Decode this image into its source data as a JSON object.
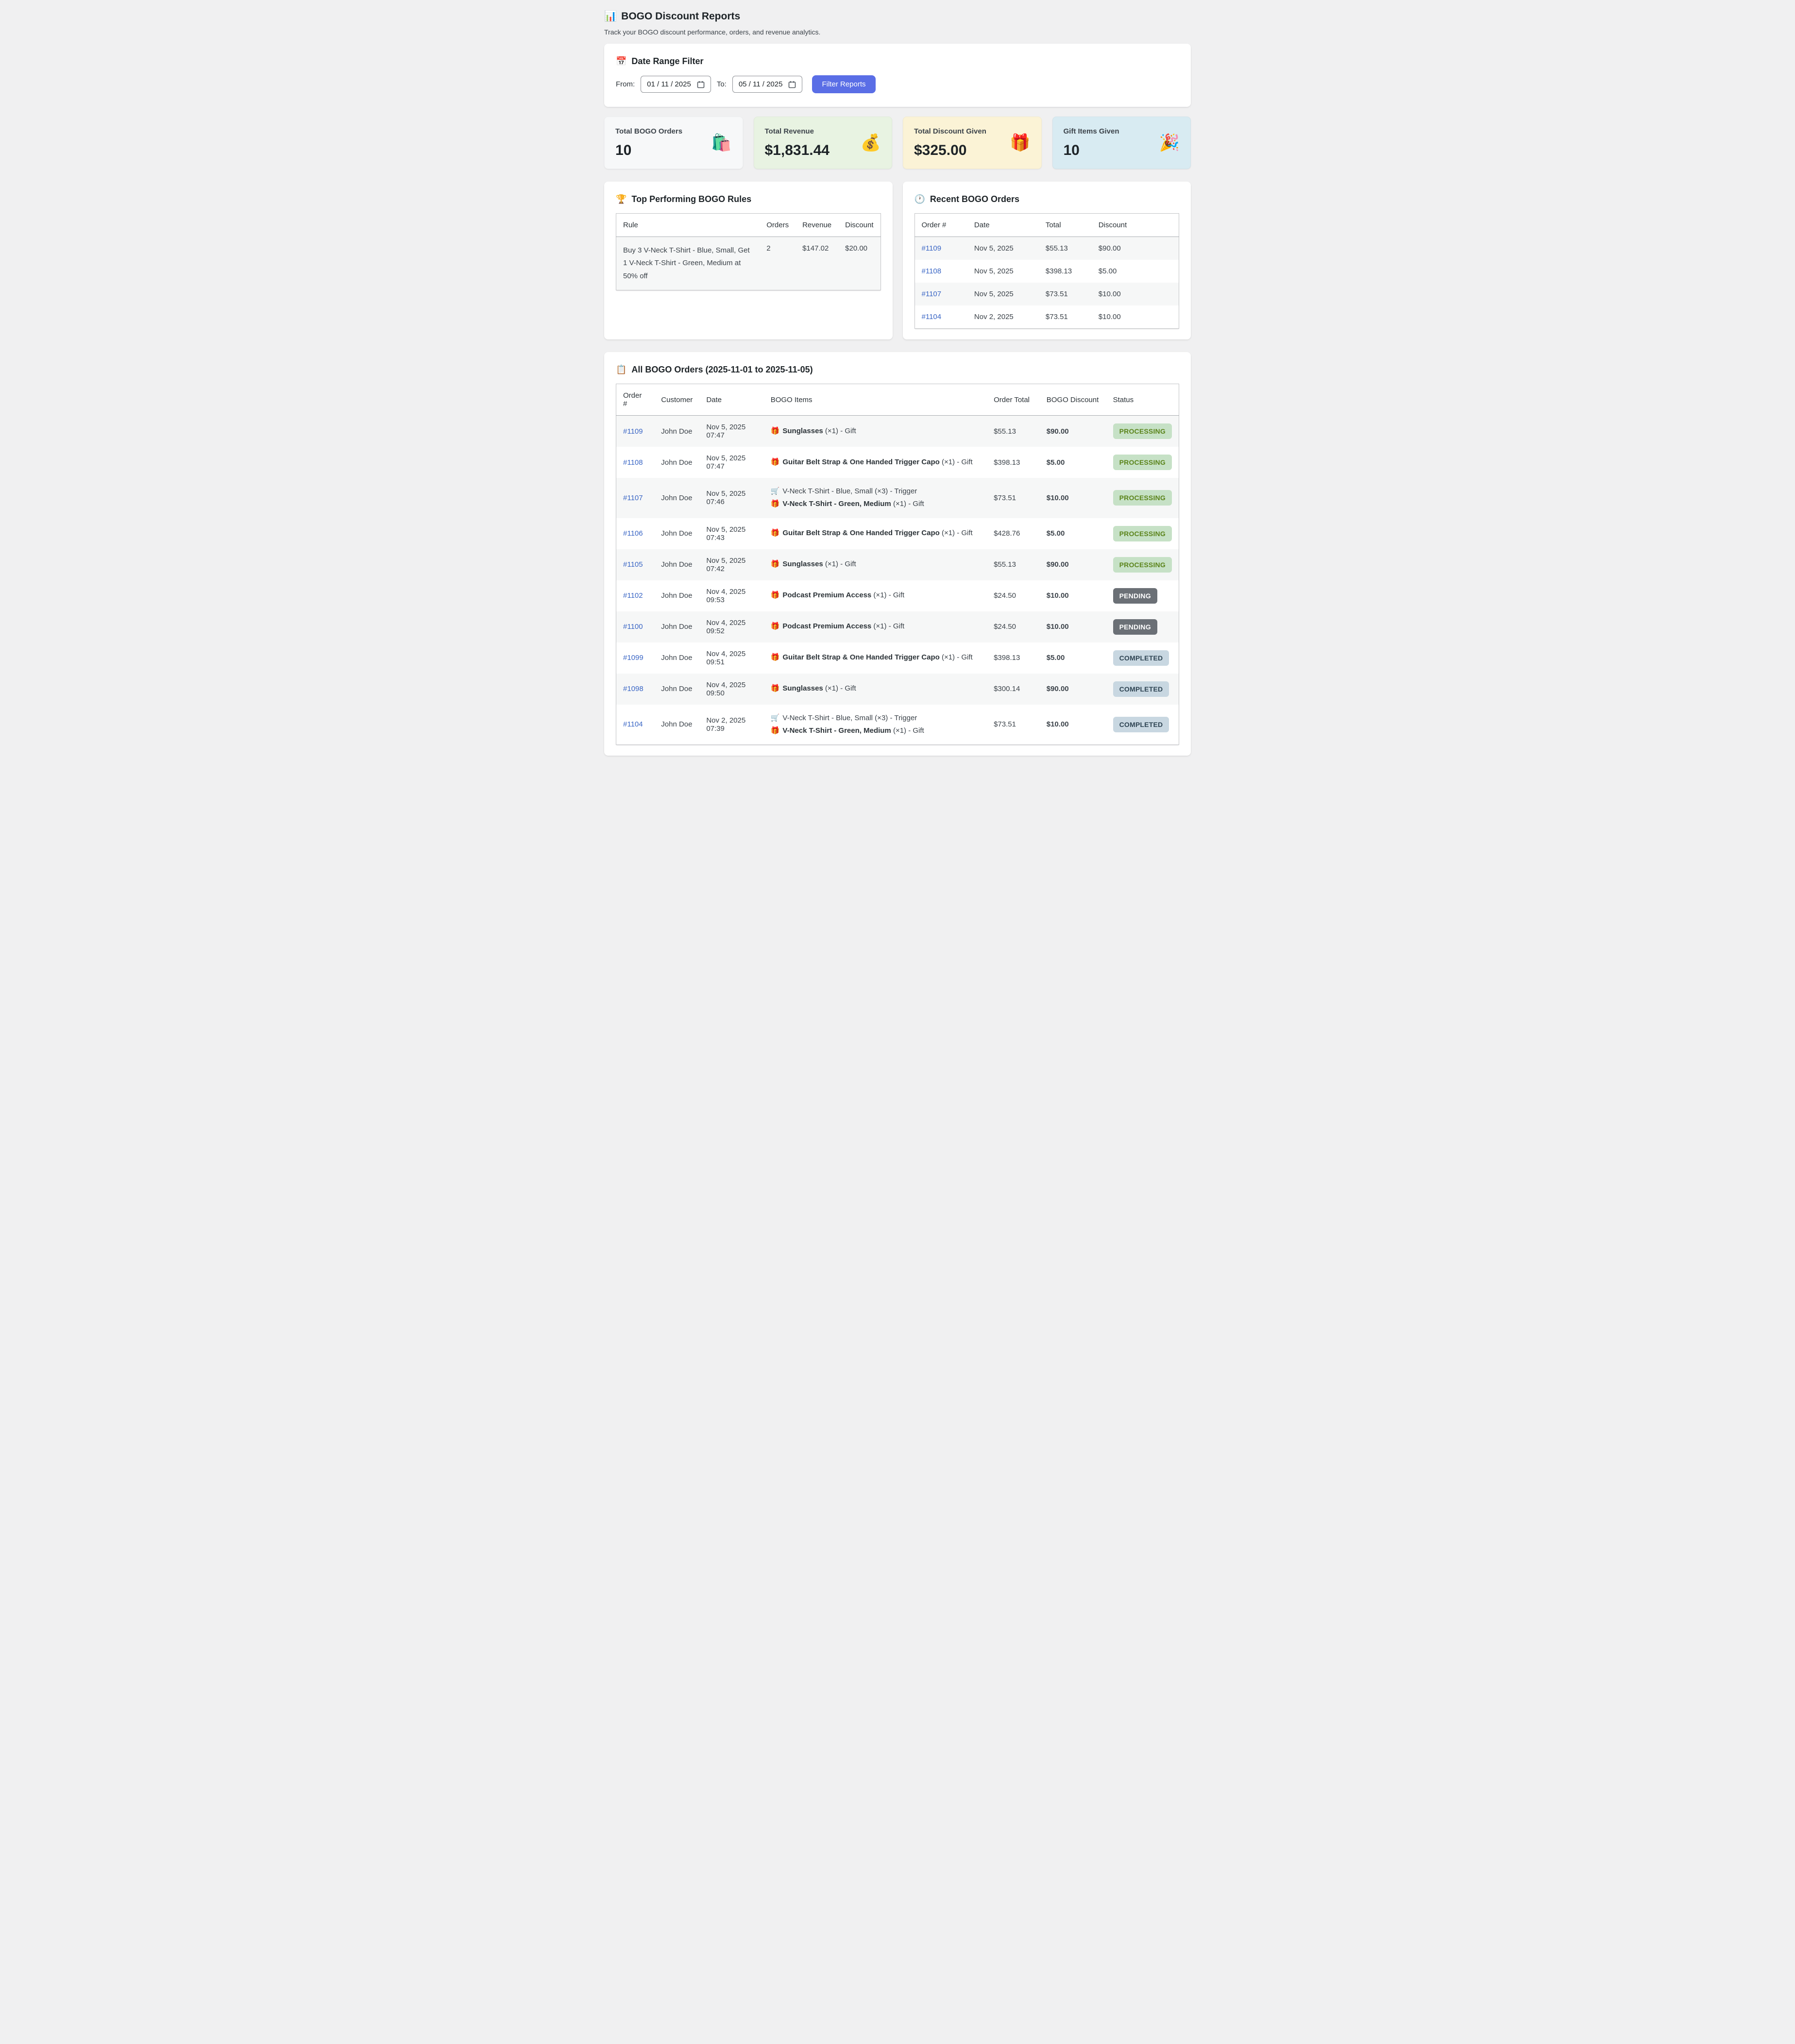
{
  "page": {
    "title_icon": "📊",
    "title": "BOGO Discount Reports",
    "subtitle": "Track your BOGO discount performance, orders, and revenue analytics."
  },
  "filter": {
    "icon": "📅",
    "heading": "Date Range Filter",
    "from_label": "From:",
    "from_value": "01 / 11 / 2025",
    "to_label": "To:",
    "to_value": "05 / 11 / 2025",
    "button_label": "Filter Reports",
    "button_color": "#5a6ee6"
  },
  "stats": [
    {
      "label": "Total BOGO Orders",
      "value": "10",
      "icon": "🛍️",
      "icon_name": "shopping-bags-icon",
      "bg": "#f7f8f9"
    },
    {
      "label": "Total Revenue",
      "value": "$1,831.44",
      "icon": "💰",
      "icon_name": "money-bag-icon",
      "bg": "#e8f3e2"
    },
    {
      "label": "Total Discount Given",
      "value": "$325.00",
      "icon": "🎁",
      "icon_name": "gift-icon",
      "bg": "#fbf3d6"
    },
    {
      "label": "Gift Items Given",
      "value": "10",
      "icon": "🎉",
      "icon_name": "party-popper-icon",
      "bg": "#d8ebf2"
    }
  ],
  "top_rules": {
    "icon": "🏆",
    "heading": "Top Performing BOGO Rules",
    "columns": [
      "Rule",
      "Orders",
      "Revenue",
      "Discount"
    ],
    "rows": [
      {
        "rule": "Buy 3 V-Neck T-Shirt - Blue, Small, Get 1 V-Neck T-Shirt - Green, Medium at 50% off",
        "orders": "2",
        "revenue": "$147.02",
        "discount": "$20.00"
      }
    ]
  },
  "recent_orders": {
    "icon": "🕐",
    "heading": "Recent BOGO Orders",
    "columns": [
      "Order #",
      "Date",
      "Total",
      "Discount"
    ],
    "rows": [
      {
        "order": "#1109",
        "date": "Nov 5, 2025",
        "total": "$55.13",
        "discount": "$90.00"
      },
      {
        "order": "#1108",
        "date": "Nov 5, 2025",
        "total": "$398.13",
        "discount": "$5.00"
      },
      {
        "order": "#1107",
        "date": "Nov 5, 2025",
        "total": "$73.51",
        "discount": "$10.00"
      },
      {
        "order": "#1104",
        "date": "Nov 2, 2025",
        "total": "$73.51",
        "discount": "$10.00"
      }
    ]
  },
  "all_orders": {
    "icon": "📋",
    "heading": "All BOGO Orders (2025-11-01 to 2025-11-05)",
    "columns": [
      "Order #",
      "Customer",
      "Date",
      "BOGO Items",
      "Order Total",
      "BOGO Discount",
      "Status"
    ],
    "rows": [
      {
        "order": "#1109",
        "customer": "John Doe",
        "date": "Nov 5, 2025 07:47",
        "items": [
          {
            "icon": "🎁",
            "icon_name": "gift-icon",
            "name": "Sunglasses",
            "bold": true,
            "suffix": "(×1) - Gift"
          }
        ],
        "total": "$55.13",
        "discount": "$90.00",
        "status": "PROCESSING",
        "status_key": "processing"
      },
      {
        "order": "#1108",
        "customer": "John Doe",
        "date": "Nov 5, 2025 07:47",
        "items": [
          {
            "icon": "🎁",
            "icon_name": "gift-icon",
            "name": "Guitar Belt Strap & One Handed Trigger Capo",
            "bold": true,
            "suffix": "(×1) - Gift"
          }
        ],
        "total": "$398.13",
        "discount": "$5.00",
        "status": "PROCESSING",
        "status_key": "processing"
      },
      {
        "order": "#1107",
        "customer": "John Doe",
        "date": "Nov 5, 2025 07:46",
        "items": [
          {
            "icon": "🛒",
            "icon_name": "cart-icon",
            "name": "V-Neck T-Shirt - Blue, Small",
            "bold": false,
            "suffix": "(×3) - Trigger"
          },
          {
            "icon": "🎁",
            "icon_name": "gift-icon",
            "name": "V-Neck T-Shirt - Green, Medium",
            "bold": true,
            "suffix": "(×1) - Gift"
          }
        ],
        "total": "$73.51",
        "discount": "$10.00",
        "status": "PROCESSING",
        "status_key": "processing"
      },
      {
        "order": "#1106",
        "customer": "John Doe",
        "date": "Nov 5, 2025 07:43",
        "items": [
          {
            "icon": "🎁",
            "icon_name": "gift-icon",
            "name": "Guitar Belt Strap & One Handed Trigger Capo",
            "bold": true,
            "suffix": "(×1) - Gift"
          }
        ],
        "total": "$428.76",
        "discount": "$5.00",
        "status": "PROCESSING",
        "status_key": "processing"
      },
      {
        "order": "#1105",
        "customer": "John Doe",
        "date": "Nov 5, 2025 07:42",
        "items": [
          {
            "icon": "🎁",
            "icon_name": "gift-icon",
            "name": "Sunglasses",
            "bold": true,
            "suffix": "(×1) - Gift"
          }
        ],
        "total": "$55.13",
        "discount": "$90.00",
        "status": "PROCESSING",
        "status_key": "processing"
      },
      {
        "order": "#1102",
        "customer": "John Doe",
        "date": "Nov 4, 2025 09:53",
        "items": [
          {
            "icon": "🎁",
            "icon_name": "gift-icon",
            "name": "Podcast Premium Access",
            "bold": true,
            "suffix": "(×1) - Gift"
          }
        ],
        "total": "$24.50",
        "discount": "$10.00",
        "status": "PENDING",
        "status_key": "pending"
      },
      {
        "order": "#1100",
        "customer": "John Doe",
        "date": "Nov 4, 2025 09:52",
        "items": [
          {
            "icon": "🎁",
            "icon_name": "gift-icon",
            "name": "Podcast Premium Access",
            "bold": true,
            "suffix": "(×1) - Gift"
          }
        ],
        "total": "$24.50",
        "discount": "$10.00",
        "status": "PENDING",
        "status_key": "pending"
      },
      {
        "order": "#1099",
        "customer": "John Doe",
        "date": "Nov 4, 2025 09:51",
        "items": [
          {
            "icon": "🎁",
            "icon_name": "gift-icon",
            "name": "Guitar Belt Strap & One Handed Trigger Capo",
            "bold": true,
            "suffix": "(×1) - Gift"
          }
        ],
        "total": "$398.13",
        "discount": "$5.00",
        "status": "COMPLETED",
        "status_key": "completed"
      },
      {
        "order": "#1098",
        "customer": "John Doe",
        "date": "Nov 4, 2025 09:50",
        "items": [
          {
            "icon": "🎁",
            "icon_name": "gift-icon",
            "name": "Sunglasses",
            "bold": true,
            "suffix": "(×1) - Gift"
          }
        ],
        "total": "$300.14",
        "discount": "$90.00",
        "status": "COMPLETED",
        "status_key": "completed"
      },
      {
        "order": "#1104",
        "customer": "John Doe",
        "date": "Nov 2, 2025 07:39",
        "items": [
          {
            "icon": "🛒",
            "icon_name": "cart-icon",
            "name": "V-Neck T-Shirt - Blue, Small",
            "bold": false,
            "suffix": "(×3) - Trigger"
          },
          {
            "icon": "🎁",
            "icon_name": "gift-icon",
            "name": "V-Neck T-Shirt - Green, Medium",
            "bold": true,
            "suffix": "(×1) - Gift"
          }
        ],
        "total": "$73.51",
        "discount": "$10.00",
        "status": "COMPLETED",
        "status_key": "completed"
      }
    ]
  },
  "status_styles": {
    "processing": {
      "bg": "#c6e1c6",
      "text": "#5b841b"
    },
    "pending": {
      "bg": "#6b7076",
      "text": "#ffffff"
    },
    "completed": {
      "bg": "#c8d7e1",
      "text": "#2e4453"
    }
  },
  "colors": {
    "link": "#3a66c5",
    "discount_green": "#61a14e",
    "page_background": "#f0f0f1"
  }
}
